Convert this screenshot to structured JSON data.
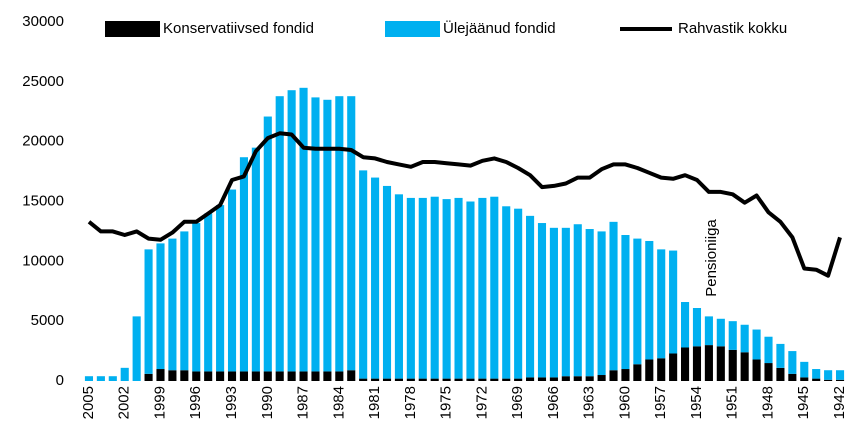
{
  "chart_data": {
    "type": "bar",
    "stacked": true,
    "categories": [
      "2005",
      null,
      null,
      "2002",
      null,
      null,
      "1999",
      null,
      null,
      "1996",
      null,
      null,
      "1993",
      null,
      null,
      "1990",
      null,
      null,
      "1987",
      null,
      null,
      "1984",
      null,
      null,
      "1981",
      null,
      null,
      "1978",
      null,
      null,
      "1975",
      null,
      null,
      "1972",
      null,
      null,
      "1969",
      null,
      null,
      "1966",
      null,
      null,
      "1963",
      null,
      null,
      "1960",
      null,
      null,
      "1957",
      null,
      null,
      "1954",
      null,
      null,
      "1951",
      null,
      null,
      "1948",
      null,
      null,
      "1945",
      null,
      null,
      "1942"
    ],
    "series": [
      {
        "name": "Konservatiivsed fondid",
        "color": "#000000",
        "type": "bar",
        "values": [
          0,
          0,
          0,
          0,
          0,
          600,
          1000,
          900,
          900,
          800,
          800,
          800,
          800,
          800,
          800,
          800,
          800,
          800,
          800,
          800,
          800,
          800,
          900,
          200,
          200,
          200,
          200,
          200,
          200,
          200,
          200,
          200,
          200,
          200,
          200,
          200,
          200,
          300,
          300,
          300,
          400,
          400,
          400,
          500,
          900,
          1000,
          1400,
          1800,
          1900,
          2300,
          2800,
          2900,
          3000,
          2900,
          2600,
          2400,
          1800,
          1500,
          1100,
          600,
          300,
          200,
          100,
          100
        ]
      },
      {
        "name": "Ülejäänud fondid",
        "color": "#00b0f0",
        "type": "bar",
        "values": [
          400,
          400,
          400,
          1100,
          5400,
          10400,
          10500,
          11000,
          11600,
          12400,
          13200,
          13900,
          15200,
          17900,
          18700,
          21300,
          23000,
          23500,
          23700,
          22900,
          22700,
          23000,
          22900,
          17400,
          16800,
          16100,
          15400,
          15100,
          15100,
          15200,
          15000,
          15100,
          14800,
          15100,
          15200,
          14400,
          14200,
          13500,
          12900,
          12500,
          12400,
          12700,
          12300,
          12000,
          12400,
          11200,
          10500,
          9900,
          9100,
          8600,
          3800,
          3200,
          2400,
          2300,
          2400,
          2300,
          2500,
          2200,
          2000,
          1900,
          1300,
          800,
          800,
          800
        ]
      },
      {
        "name": "Rahvastik kokku",
        "color": "#000000",
        "type": "line",
        "values": [
          13300,
          12500,
          12500,
          12200,
          12500,
          11900,
          11800,
          12400,
          13300,
          13300,
          14000,
          14700,
          16800,
          17100,
          19200,
          20300,
          20700,
          20600,
          19500,
          19400,
          19400,
          19400,
          19300,
          18700,
          18600,
          18300,
          18100,
          17900,
          18300,
          18300,
          18200,
          18100,
          18000,
          18400,
          18600,
          18300,
          17800,
          17200,
          16200,
          16300,
          16500,
          17000,
          17000,
          17700,
          18100,
          18100,
          17800,
          17400,
          17000,
          16900,
          17200,
          16800,
          15800,
          15800,
          15600,
          14900,
          15500,
          14100,
          13300,
          12000,
          9400,
          9300,
          8800,
          12000
        ]
      }
    ],
    "ylim": [
      0,
      30000
    ],
    "yticks": [
      0,
      5000,
      10000,
      15000,
      20000,
      25000,
      30000
    ],
    "annotation": "Pensioniiga",
    "legend": "top",
    "grid": false
  }
}
